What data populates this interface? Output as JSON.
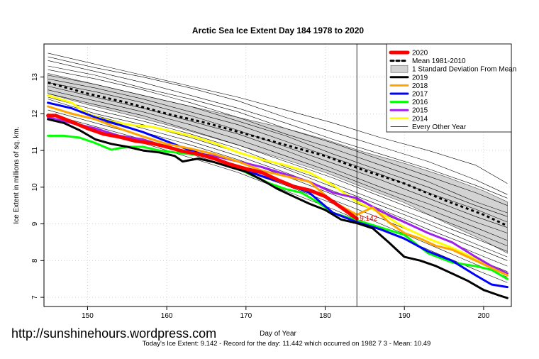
{
  "chart_data": {
    "type": "line",
    "title": "Arctic Sea Ice Extent Day 184 1978 to 2020",
    "xlabel": "Day of Year",
    "ylabel": "Ice Extent in millions of sq. km.",
    "xlim": [
      144.5,
      203.5
    ],
    "ylim": [
      6.75,
      13.9
    ],
    "xticks": [
      150,
      160,
      170,
      180,
      190,
      200
    ],
    "yticks": [
      7,
      8,
      9,
      10,
      11,
      12,
      13
    ],
    "grid": true,
    "legend_position": "top-right",
    "vline_day": 184,
    "current_value_label": "9.142",
    "series": [
      {
        "name": "2020",
        "color": "#ff0000",
        "width": 5,
        "x": [
          145,
          146,
          148,
          150,
          152,
          154,
          156,
          158,
          160,
          162,
          164,
          166,
          168,
          170,
          172,
          174,
          176,
          178,
          180,
          182,
          184
        ],
        "y": [
          11.95,
          11.95,
          11.78,
          11.6,
          11.45,
          11.37,
          11.26,
          11.2,
          11.1,
          10.98,
          10.9,
          10.78,
          10.62,
          10.5,
          10.4,
          10.2,
          10.02,
          9.92,
          9.75,
          9.45,
          9.142
        ]
      },
      {
        "name": "2019",
        "color": "#000000",
        "width": 3,
        "x": [
          145,
          147,
          149,
          151,
          153,
          155,
          157,
          159,
          161,
          162,
          164,
          166,
          168,
          170,
          172,
          174,
          176,
          178,
          180,
          182,
          184,
          186,
          188,
          190,
          192,
          194,
          196,
          198,
          200,
          202,
          203
        ],
        "y": [
          11.85,
          11.75,
          11.55,
          11.3,
          11.18,
          11.1,
          11.0,
          10.95,
          10.85,
          10.7,
          10.78,
          10.68,
          10.55,
          10.42,
          10.2,
          9.95,
          9.75,
          9.55,
          9.38,
          9.12,
          9.02,
          8.88,
          8.5,
          8.1,
          8.0,
          7.85,
          7.65,
          7.45,
          7.2,
          7.05,
          6.98
        ]
      },
      {
        "name": "2018",
        "color": "#ffa500",
        "width": 3,
        "x": [
          145,
          148,
          151,
          154,
          157,
          160,
          163,
          166,
          169,
          172,
          175,
          178,
          181,
          184,
          186,
          188,
          190,
          192,
          194,
          196,
          198,
          200,
          203
        ],
        "y": [
          12.2,
          12.0,
          11.85,
          11.6,
          11.38,
          11.18,
          11.05,
          10.9,
          10.7,
          10.45,
          10.3,
          10.15,
          9.6,
          9.25,
          9.45,
          9.05,
          8.75,
          8.6,
          8.4,
          8.3,
          8.1,
          7.9,
          7.6
        ]
      },
      {
        "name": "2017",
        "color": "#0000ff",
        "width": 3,
        "x": [
          145,
          148,
          151,
          154,
          157,
          160,
          163,
          166,
          169,
          172,
          175,
          178,
          181,
          184,
          187,
          190,
          193,
          196,
          199,
          201,
          203
        ],
        "y": [
          12.3,
          12.15,
          11.9,
          11.7,
          11.5,
          11.25,
          11.0,
          10.8,
          10.55,
          10.3,
          10.1,
          9.85,
          9.3,
          9.05,
          8.85,
          8.6,
          8.25,
          8.0,
          7.6,
          7.35,
          7.28
        ]
      },
      {
        "name": "2016",
        "color": "#00ff00",
        "width": 3,
        "x": [
          145,
          147,
          149,
          151,
          153,
          155,
          157,
          159,
          161,
          163,
          165,
          167,
          169,
          171,
          173,
          175,
          177,
          179,
          181,
          184,
          187,
          190,
          193,
          196,
          199,
          201,
          203
        ],
        "y": [
          11.4,
          11.4,
          11.35,
          11.2,
          11.02,
          11.1,
          11.1,
          11.0,
          10.95,
          10.9,
          10.85,
          10.7,
          10.5,
          10.3,
          10.1,
          9.95,
          9.85,
          9.6,
          9.3,
          9.1,
          8.9,
          8.7,
          8.2,
          7.95,
          7.85,
          7.75,
          7.5
        ]
      },
      {
        "name": "2015",
        "color": "#a020f0",
        "width": 3,
        "x": [
          145,
          148,
          151,
          154,
          157,
          160,
          163,
          166,
          169,
          172,
          175,
          178,
          181,
          184,
          187,
          190,
          193,
          196,
          199,
          201,
          203
        ],
        "y": [
          11.9,
          11.75,
          11.6,
          11.4,
          11.3,
          11.1,
          10.95,
          10.85,
          10.7,
          10.55,
          10.35,
          10.15,
          9.85,
          9.7,
          9.35,
          9.05,
          8.75,
          8.5,
          8.1,
          7.85,
          7.65
        ]
      },
      {
        "name": "2014",
        "color": "#ffff00",
        "width": 3,
        "x": [
          145,
          148,
          150,
          152,
          154,
          156,
          158,
          160,
          163,
          166,
          169,
          172,
          175,
          178,
          181,
          184,
          187,
          190,
          193,
          196,
          199,
          201,
          203
        ],
        "y": [
          12.5,
          12.3,
          12.0,
          11.85,
          11.75,
          11.68,
          11.65,
          11.55,
          11.4,
          11.2,
          10.95,
          10.75,
          10.6,
          10.4,
          10.05,
          9.6,
          9.3,
          8.9,
          8.6,
          8.35,
          8.05,
          7.85,
          7.65
        ]
      }
    ],
    "mean_1981_2010": {
      "name": "Mean 1981-2010",
      "color": "#000000",
      "x": [
        145,
        150,
        155,
        160,
        165,
        170,
        175,
        180,
        185,
        190,
        195,
        200,
        203
      ],
      "y": [
        12.85,
        12.55,
        12.3,
        12.0,
        11.75,
        11.45,
        11.15,
        10.85,
        10.45,
        10.1,
        9.65,
        9.25,
        8.95
      ]
    },
    "std_band": {
      "name": "1 Standard Deviation From Mean",
      "color": "#d3d3d3",
      "x": [
        145,
        150,
        155,
        160,
        165,
        170,
        175,
        180,
        185,
        190,
        195,
        200,
        203
      ],
      "upper": [
        13.1,
        12.85,
        12.6,
        12.35,
        12.1,
        11.85,
        11.6,
        11.3,
        10.95,
        10.65,
        10.3,
        9.9,
        9.6
      ],
      "lower": [
        12.55,
        12.25,
        11.98,
        11.7,
        11.4,
        11.08,
        10.75,
        10.4,
        9.98,
        9.58,
        9.05,
        8.55,
        8.2
      ]
    },
    "every_other_year": {
      "name": "Every Other Year",
      "color": "#000000",
      "x": [
        145,
        151,
        157,
        163,
        169,
        175,
        181,
        187,
        193,
        199,
        203
      ],
      "years": [
        [
          13.65,
          13.35,
          13.05,
          12.75,
          12.45,
          12.1,
          11.75,
          11.35,
          11.0,
          10.6,
          10.1
        ],
        [
          13.55,
          13.25,
          13.0,
          12.7,
          12.35,
          11.9,
          11.5,
          11.1,
          10.7,
          10.2,
          9.8
        ],
        [
          13.45,
          13.15,
          12.85,
          12.5,
          12.15,
          11.75,
          11.3,
          10.9,
          10.5,
          10.05,
          9.7
        ],
        [
          13.3,
          13.05,
          12.7,
          12.4,
          12.05,
          11.6,
          11.2,
          10.75,
          10.3,
          9.85,
          9.5
        ],
        [
          13.2,
          12.95,
          12.65,
          12.3,
          11.9,
          11.45,
          11.05,
          10.6,
          10.15,
          9.6,
          9.3
        ],
        [
          13.05,
          12.8,
          12.5,
          12.2,
          11.8,
          11.4,
          10.9,
          10.45,
          10.0,
          9.5,
          9.2
        ],
        [
          12.95,
          12.7,
          12.4,
          12.05,
          11.7,
          11.25,
          10.8,
          10.35,
          9.85,
          9.4,
          9.05
        ],
        [
          12.85,
          12.6,
          12.3,
          11.95,
          11.55,
          11.1,
          10.65,
          10.2,
          9.7,
          9.2,
          8.9
        ],
        [
          12.75,
          12.45,
          12.15,
          11.8,
          11.45,
          11.0,
          10.5,
          10.0,
          9.55,
          9.05,
          8.75
        ],
        [
          12.65,
          12.35,
          12.05,
          11.7,
          11.3,
          10.85,
          10.4,
          9.9,
          9.4,
          8.9,
          8.55
        ],
        [
          12.55,
          12.25,
          11.95,
          11.55,
          11.15,
          10.7,
          10.25,
          9.75,
          9.25,
          8.75,
          8.4
        ],
        [
          12.45,
          12.1,
          11.8,
          11.45,
          11.05,
          10.55,
          10.1,
          9.6,
          9.1,
          8.6,
          8.25
        ],
        [
          12.4,
          12.0,
          11.7,
          11.35,
          10.95,
          10.5,
          10.0,
          9.5,
          9.0,
          8.45,
          8.1
        ],
        [
          12.3,
          11.95,
          11.6,
          11.25,
          10.85,
          10.4,
          9.9,
          9.4,
          8.85,
          8.35,
          8.0
        ],
        [
          12.2,
          11.85,
          11.5,
          11.15,
          10.75,
          10.3,
          9.8,
          9.3,
          8.75,
          8.2,
          7.85
        ],
        [
          12.1,
          11.75,
          11.4,
          11.0,
          10.6,
          10.15,
          9.65,
          9.15,
          8.6,
          8.05,
          7.7
        ],
        [
          12.0,
          11.65,
          11.3,
          10.9,
          10.5,
          10.05,
          9.55,
          9.0,
          8.45,
          7.9,
          7.55
        ],
        [
          11.9,
          11.55,
          11.2,
          10.8,
          10.4,
          9.9,
          9.4,
          8.85,
          8.3,
          7.75,
          7.4
        ]
      ]
    }
  },
  "legend": {
    "items": [
      {
        "label": "2020",
        "color": "#ff0000",
        "style": "thick"
      },
      {
        "label": "Mean 1981-2010",
        "color": "#000000",
        "style": "dashed"
      },
      {
        "label": "1 Standard Deviation From Mean",
        "color": "#d3d3d3",
        "style": "box"
      },
      {
        "label": "2019",
        "color": "#000000",
        "style": "solid"
      },
      {
        "label": "2018",
        "color": "#ffa500",
        "style": "solid"
      },
      {
        "label": "2017",
        "color": "#0000ff",
        "style": "solid"
      },
      {
        "label": "2016",
        "color": "#00ff00",
        "style": "solid"
      },
      {
        "label": "2015",
        "color": "#a020f0",
        "style": "solid"
      },
      {
        "label": "2014",
        "color": "#ffff00",
        "style": "solid"
      },
      {
        "label": "Every Other Year",
        "color": "#000000",
        "style": "thin"
      }
    ]
  },
  "watermark": "http://sunshinehours.wordpress.com",
  "footer": "Today's Ice Extent: 9.142  - Record for the day: 11.442 which occurred on 1982 7 3  - Mean: 10.49"
}
